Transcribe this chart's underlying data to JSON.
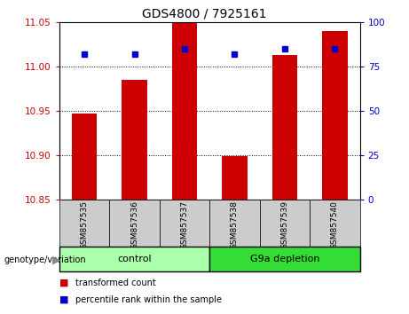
{
  "title": "GDS4800 / 7925161",
  "samples": [
    "GSM857535",
    "GSM857536",
    "GSM857537",
    "GSM857538",
    "GSM857539",
    "GSM857540"
  ],
  "transformed_counts": [
    10.947,
    10.985,
    11.053,
    10.899,
    11.013,
    11.04
  ],
  "percentile_ranks": [
    82,
    82,
    85,
    82,
    85,
    85
  ],
  "ylim_left": [
    10.85,
    11.05
  ],
  "ylim_right": [
    0,
    100
  ],
  "yticks_left": [
    10.85,
    10.9,
    10.95,
    11.0,
    11.05
  ],
  "yticks_right": [
    0,
    25,
    50,
    75,
    100
  ],
  "bar_color": "#cc0000",
  "dot_color": "#0000cc",
  "groups": [
    {
      "label": "control",
      "indices": [
        0,
        1,
        2
      ],
      "color": "#aaffaa"
    },
    {
      "label": "G9a depletion",
      "indices": [
        3,
        4,
        5
      ],
      "color": "#33dd33"
    }
  ],
  "group_label_prefix": "genotype/variation",
  "legend_items": [
    {
      "label": "transformed count",
      "color": "#cc0000"
    },
    {
      "label": "percentile rank within the sample",
      "color": "#0000cc"
    }
  ],
  "background_color": "#ffffff",
  "sample_box_color": "#cccccc",
  "left_tick_color": "#cc0000",
  "right_tick_color": "#0000cc"
}
